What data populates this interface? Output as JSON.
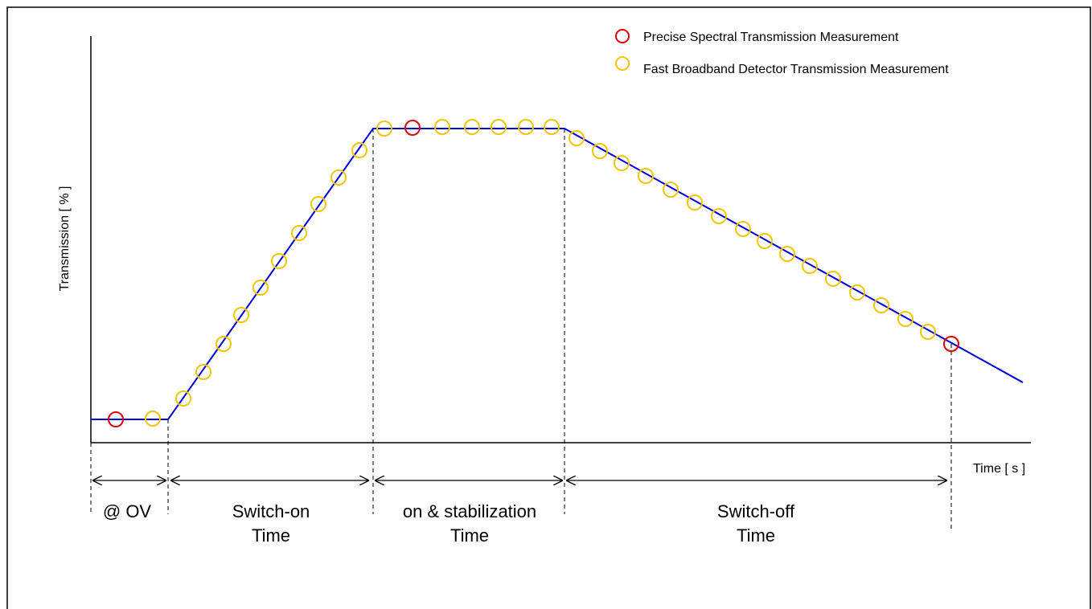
{
  "legend": {
    "precise_label": "Precise Spectral Transmission Measurement",
    "fast_label": "Fast Broadband Detector Transmission Measurement"
  },
  "axes": {
    "ylabel": "Transmission [ % ]",
    "xlabel": "Time [ s ]"
  },
  "phases": [
    {
      "line1": "@ OV",
      "line2": ""
    },
    {
      "line1": "Switch-on",
      "line2": "Time"
    },
    {
      "line1": "on & stabilization",
      "line2": "Time"
    },
    {
      "line1": "Switch-off",
      "line2": "Time"
    }
  ],
  "colors": {
    "curve": "#0000dd",
    "precise_marker": "#e00000",
    "fast_marker": "#f2c500",
    "axis": "#000000"
  }
}
